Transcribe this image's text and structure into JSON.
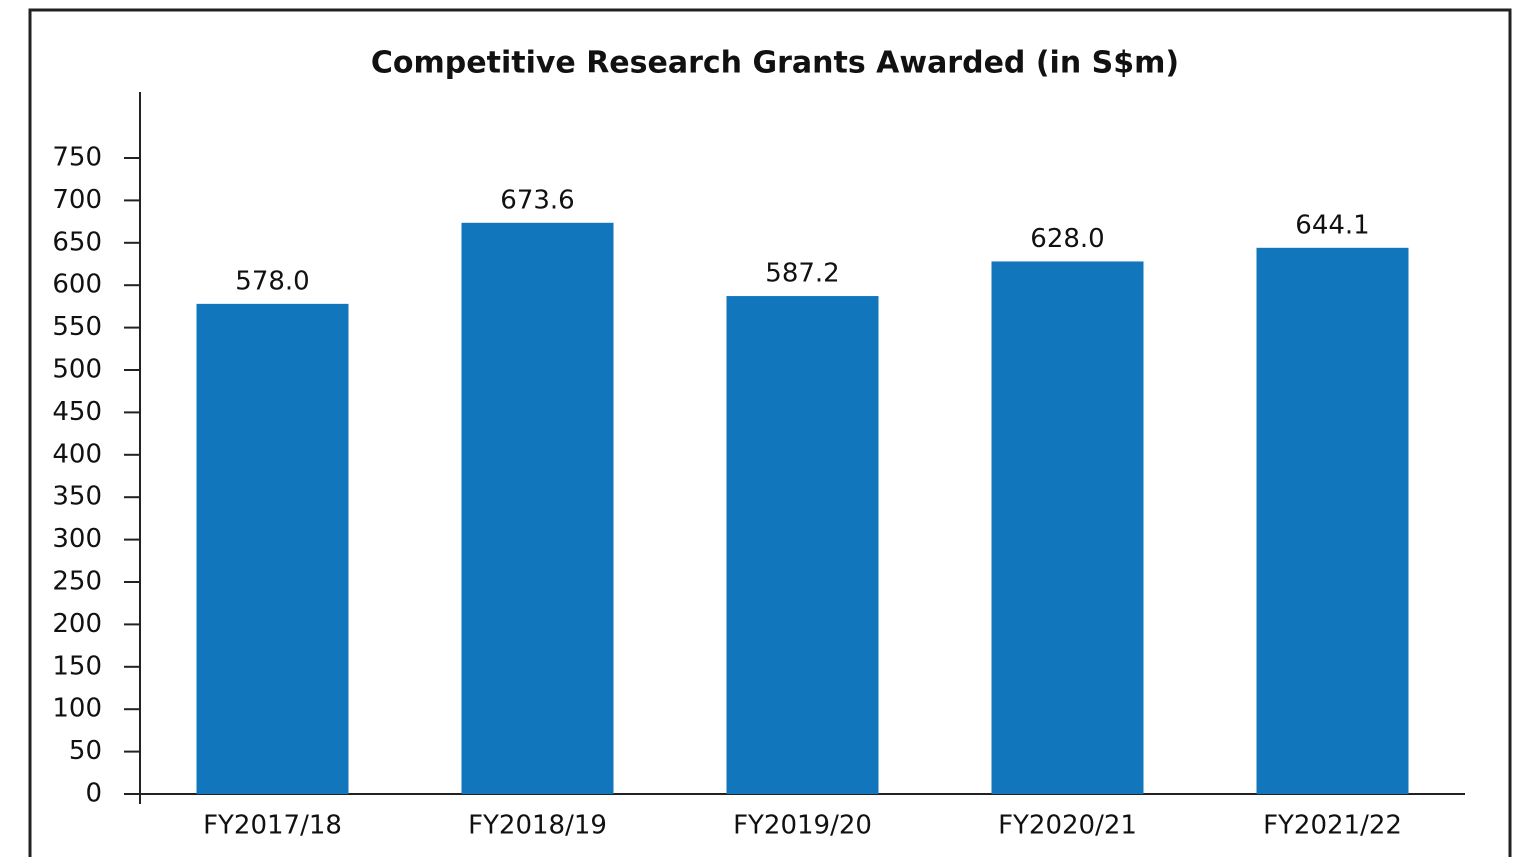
{
  "chart_data": {
    "type": "bar",
    "title": "Competitive Research Grants Awarded (in S$m)",
    "categories": [
      "FY2017/18",
      "FY2018/19",
      "FY2019/20",
      "FY2020/21",
      "FY2021/22"
    ],
    "values": [
      578,
      673.6,
      587.2,
      628,
      644.1
    ],
    "value_labels": [
      "578.0",
      "673.6",
      "587.2",
      "628.0",
      "644.1"
    ],
    "color": "#1176bc",
    "ylim": [
      0,
      750
    ],
    "yticks": [
      0,
      50,
      100,
      150,
      200,
      250,
      300,
      350,
      400,
      450,
      500,
      550,
      600,
      650,
      700,
      750
    ],
    "grid": false
  }
}
